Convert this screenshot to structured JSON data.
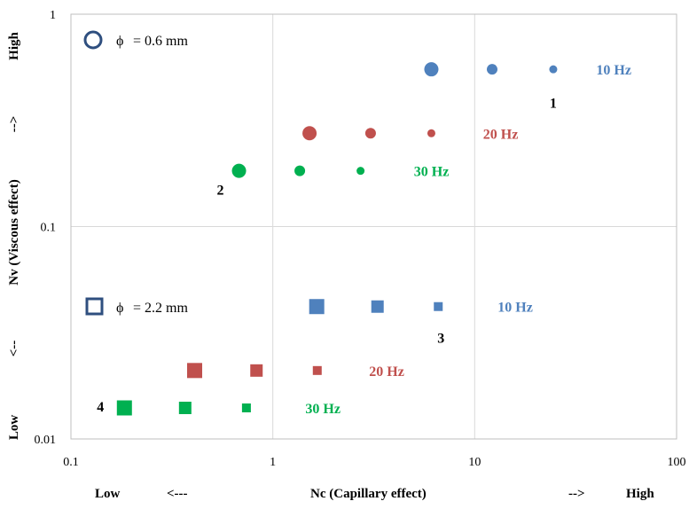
{
  "chart_data": {
    "type": "scatter",
    "title": "",
    "xscale": "log",
    "yscale": "log",
    "xlim": [
      0.1,
      100
    ],
    "ylim": [
      0.01,
      1
    ],
    "grid": true,
    "x_ticks": [
      "0.1",
      "1",
      "10",
      "100"
    ],
    "y_ticks": [
      "0.01",
      "0.1",
      "1"
    ],
    "xlabel": {
      "low": "Low",
      "low_arrow": "<---",
      "main": "Nc (Capillary effect)",
      "high_arrow": "-->",
      "high": "High"
    },
    "ylabel": {
      "low": "Low",
      "low_arrow": "<--",
      "main": "Nv  (Viscous effect)",
      "high_arrow": "-->",
      "high": "High"
    },
    "colors": {
      "10 Hz": "#4f81bd",
      "20 Hz": "#c0504d",
      "30 Hz": "#00b050"
    },
    "legend": [
      {
        "marker": "circle",
        "symbol": "ϕ",
        "text": "= 0.6 mm",
        "color": "#2f4f7f"
      },
      {
        "marker": "square",
        "symbol": "ϕ",
        "text": "= 2.2 mm",
        "color": "#2f4f7f"
      }
    ],
    "series": [
      {
        "diameter": "0.6 mm",
        "marker": "circle",
        "frequency": "10 Hz",
        "x": [
          6.1,
          12.2,
          24.5
        ],
        "y": [
          0.55,
          0.55,
          0.55
        ],
        "sizes": [
          "large",
          "medium",
          "small"
        ]
      },
      {
        "diameter": "0.6 mm",
        "marker": "circle",
        "frequency": "20 Hz",
        "x": [
          1.52,
          3.05,
          6.1
        ],
        "y": [
          0.275,
          0.275,
          0.275
        ],
        "sizes": [
          "large",
          "medium",
          "small"
        ]
      },
      {
        "diameter": "0.6 mm",
        "marker": "circle",
        "frequency": "30 Hz",
        "x": [
          0.68,
          1.36,
          2.72
        ],
        "y": [
          0.183,
          0.183,
          0.183
        ],
        "sizes": [
          "large",
          "medium",
          "small"
        ]
      },
      {
        "diameter": "2.2 mm",
        "marker": "square",
        "frequency": "10 Hz",
        "x": [
          1.65,
          3.3,
          6.6
        ],
        "y": [
          0.042,
          0.042,
          0.042
        ],
        "sizes": [
          "large",
          "medium",
          "small"
        ]
      },
      {
        "diameter": "2.2 mm",
        "marker": "square",
        "frequency": "20 Hz",
        "x": [
          0.41,
          0.83,
          1.66
        ],
        "y": [
          0.021,
          0.021,
          0.021
        ],
        "sizes": [
          "large",
          "medium",
          "small"
        ]
      },
      {
        "diameter": "2.2 mm",
        "marker": "square",
        "frequency": "30 Hz",
        "x": [
          0.184,
          0.368,
          0.74
        ],
        "y": [
          0.014,
          0.014,
          0.014
        ],
        "sizes": [
          "large",
          "medium",
          "small"
        ]
      }
    ],
    "annotations": [
      {
        "text": "10 Hz",
        "x": 40,
        "y": 0.55,
        "color": "#4f81bd"
      },
      {
        "text": "20 Hz",
        "x": 11,
        "y": 0.275,
        "color": "#c0504d"
      },
      {
        "text": "30 Hz",
        "x": 5.0,
        "y": 0.183,
        "color": "#00b050"
      },
      {
        "text": "10 Hz",
        "x": 13,
        "y": 0.042,
        "color": "#4f81bd"
      },
      {
        "text": "20 Hz",
        "x": 3.0,
        "y": 0.021,
        "color": "#c0504d"
      },
      {
        "text": "30 Hz",
        "x": 1.45,
        "y": 0.014,
        "color": "#00b050"
      },
      {
        "text": "1",
        "x": 24.5,
        "y": 0.385,
        "color": "#000000"
      },
      {
        "text": "2",
        "x": 0.55,
        "y": 0.15,
        "color": "#000000"
      },
      {
        "text": "3",
        "x": 6.8,
        "y": 0.03,
        "color": "#000000"
      },
      {
        "text": "4",
        "x": 0.14,
        "y": 0.0143,
        "color": "#000000"
      }
    ]
  }
}
